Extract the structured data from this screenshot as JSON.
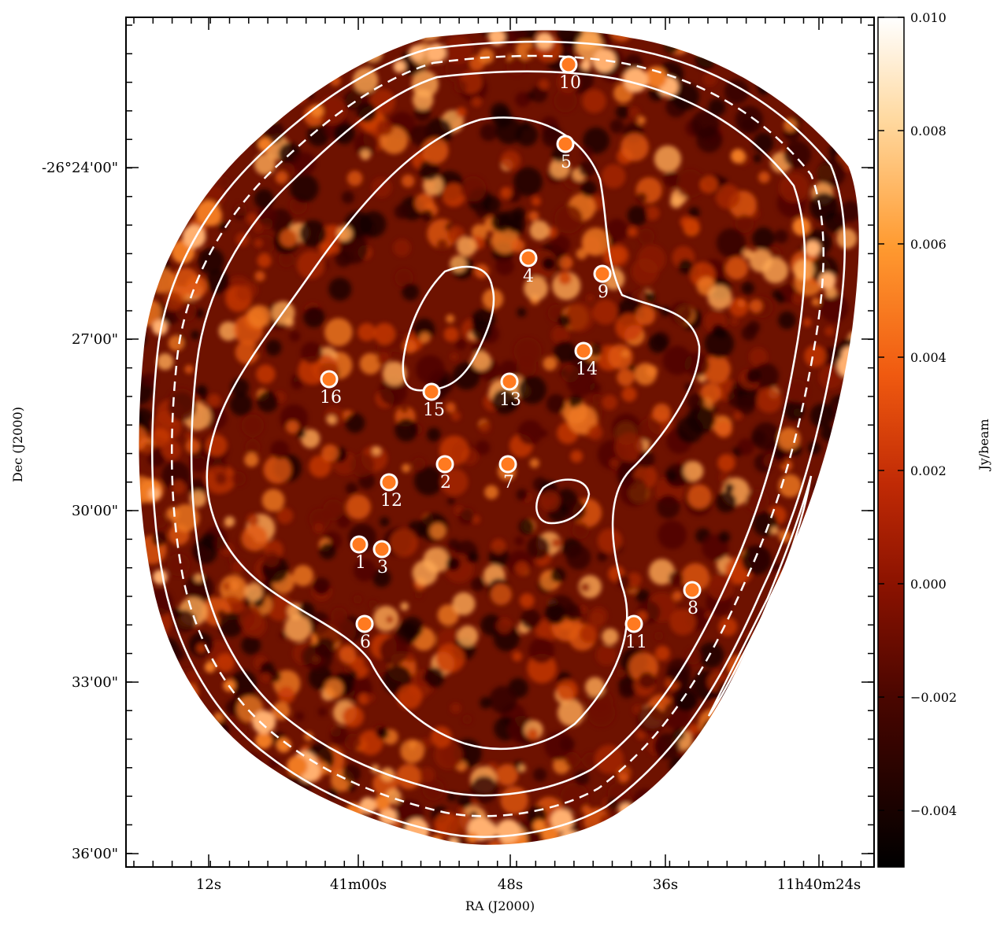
{
  "figure": {
    "x_axis_title": "RA (J2000)",
    "y_axis_title": "Dec (J2000)",
    "x_tick_labels": [
      "12s",
      "41m00s",
      "48s",
      "36s",
      "11h40m24s"
    ],
    "y_tick_labels": [
      "-26°24'00\"",
      "27'00\"",
      "30'00\"",
      "33'00\"",
      "36'00\""
    ],
    "colorbar": {
      "title": "Jy/beam",
      "tick_labels": [
        "0.010",
        "0.008",
        "0.006",
        "0.004",
        "0.002",
        "0.000",
        "−0.002",
        "−0.004"
      ],
      "colormap": "hot (black → red → orange → white)",
      "range": [
        -0.005,
        0.01
      ]
    },
    "colors": {
      "map_dark": "#1a0200",
      "map_mid": "#7a1500",
      "map_bright": "#e85a10",
      "contour": "#ffffff"
    },
    "sources": [
      {
        "id": "1"
      },
      {
        "id": "2"
      },
      {
        "id": "3"
      },
      {
        "id": "4"
      },
      {
        "id": "5"
      },
      {
        "id": "6"
      },
      {
        "id": "7"
      },
      {
        "id": "8"
      },
      {
        "id": "9"
      },
      {
        "id": "10"
      },
      {
        "id": "11"
      },
      {
        "id": "12"
      },
      {
        "id": "13"
      },
      {
        "id": "14"
      },
      {
        "id": "15"
      },
      {
        "id": "16"
      }
    ]
  }
}
